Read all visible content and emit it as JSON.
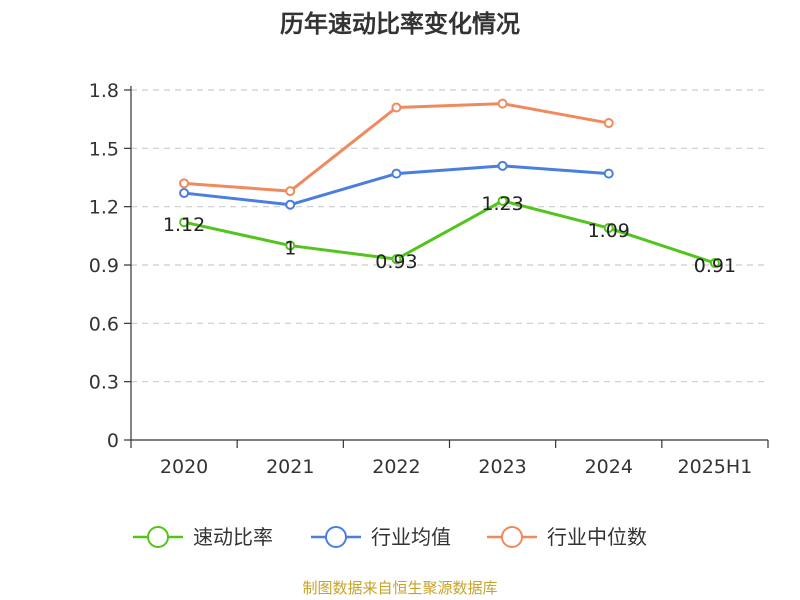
{
  "colors": {
    "series_0": "#52c41a",
    "series_1": "#4a7fe0",
    "series_2": "#f08a5d",
    "grid": "#cccccc",
    "axis": "#333333",
    "source": "#c9a227"
  },
  "chart_data": {
    "type": "line",
    "title": "历年速动比率变化情况",
    "categories": [
      "2020",
      "2021",
      "2022",
      "2023",
      "2024",
      "2025H1"
    ],
    "ylim": [
      0,
      1.8
    ],
    "yticks": [
      0,
      0.3,
      0.6,
      0.9,
      1.2,
      1.5,
      1.8
    ],
    "ytick_labels": [
      "0",
      "0.3",
      "0.6",
      "0.9",
      "1.2",
      "1.5",
      "1.8"
    ],
    "grid": true,
    "legend_position": "bottom",
    "series": [
      {
        "name": "速动比率",
        "values": [
          1.12,
          1.0,
          0.93,
          1.23,
          1.09,
          0.91
        ],
        "labels": [
          "1.12",
          "1",
          "0.93",
          "1.23",
          "1.09",
          "0.91"
        ],
        "show_labels": true
      },
      {
        "name": "行业均值",
        "values": [
          1.27,
          1.21,
          1.37,
          1.41,
          1.37,
          null
        ],
        "show_labels": false
      },
      {
        "name": "行业中位数",
        "values": [
          1.32,
          1.28,
          1.71,
          1.73,
          1.63,
          null
        ],
        "show_labels": false
      }
    ]
  },
  "source_note": "制图数据来自恒生聚源数据库"
}
